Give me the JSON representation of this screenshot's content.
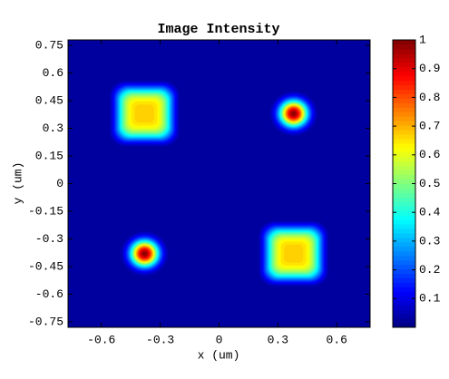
{
  "chart_data": {
    "type": "heatmap",
    "title": "Image Intensity",
    "x_label": "x (um)",
    "y_label": "y (um)",
    "xlim": [
      -0.77,
      0.77
    ],
    "ylim": [
      -0.78,
      0.78
    ],
    "xticks": [
      -0.6,
      -0.3,
      0,
      0.3,
      0.6
    ],
    "yticks": [
      0.75,
      0.6,
      0.45,
      0.3,
      0.15,
      0,
      -0.15,
      -0.3,
      -0.45,
      -0.6,
      -0.75
    ],
    "colormap": "jet",
    "clim": [
      0,
      1
    ],
    "cticks": [
      0.1,
      0.2,
      0.3,
      0.4,
      0.5,
      0.6,
      0.7,
      0.8,
      0.9,
      1
    ],
    "spots": [
      {
        "x": -0.38,
        "y": 0.38,
        "values": 0.68,
        "width": 0.14,
        "shape": "square"
      },
      {
        "x": 0.38,
        "y": 0.38,
        "values": 1,
        "width": 0.07,
        "shape": "round"
      },
      {
        "x": -0.38,
        "y": -0.38,
        "values": 1,
        "width": 0.07,
        "shape": "round"
      },
      {
        "x": 0.38,
        "y": -0.38,
        "values": 0.68,
        "width": 0.14,
        "shape": "square"
      }
    ]
  }
}
